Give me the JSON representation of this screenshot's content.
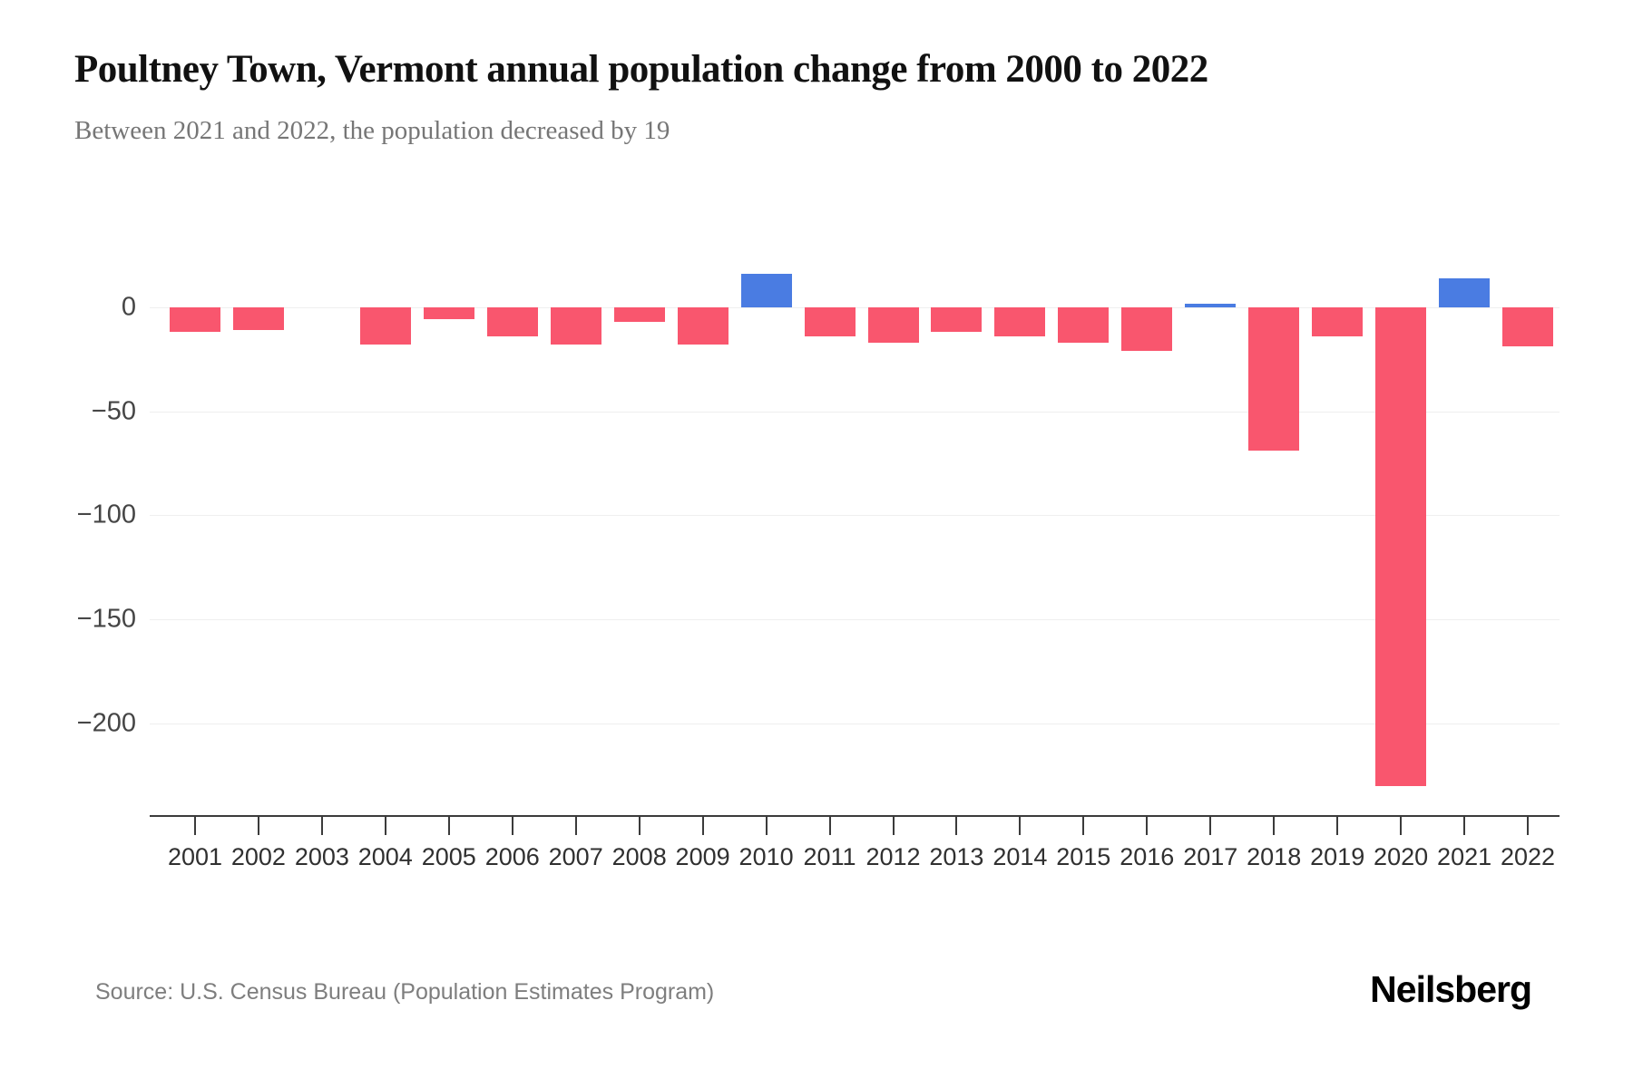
{
  "page": {
    "title": "Poultney Town, Vermont annual population change from 2000 to 2022",
    "subtitle": "Between 2021 and 2022, the population decreased by 19",
    "source": "Source: U.S. Census Bureau (Population Estimates Program)",
    "brand": "Neilsberg"
  },
  "chart_data": {
    "type": "bar",
    "title": "Poultney Town, Vermont annual population change from 2000 to 2022",
    "subtitle": "Between 2021 and 2022, the population decreased by 19",
    "categories": [
      "2001",
      "2002",
      "2003",
      "2004",
      "2005",
      "2006",
      "2007",
      "2008",
      "2009",
      "2010",
      "2011",
      "2012",
      "2013",
      "2014",
      "2015",
      "2016",
      "2017",
      "2018",
      "2019",
      "2020",
      "2021",
      "2022"
    ],
    "values": [
      -12,
      -11,
      0,
      -18,
      -6,
      -14,
      -18,
      -7,
      -18,
      16,
      -14,
      -17,
      -12,
      -14,
      -17,
      -21,
      1,
      -69,
      -14,
      -230,
      14,
      -19
    ],
    "xlabel": "",
    "ylabel": "",
    "yticks": [
      0,
      -50,
      -100,
      -150,
      -200
    ],
    "ylim": [
      -244,
      43
    ],
    "grid": true,
    "legend": false,
    "colors": {
      "negative": "#f9566e",
      "positive": "#4a7ce2",
      "gridline": "#efefef",
      "axis": "#3b3b3b"
    }
  }
}
